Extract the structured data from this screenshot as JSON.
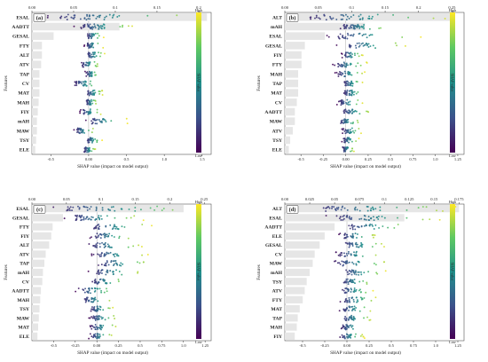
{
  "colorbar": {
    "label": "SHAP value",
    "high": "High",
    "low": "Low",
    "colors": [
      "#440154",
      "#3b528b",
      "#21918c",
      "#5ec962",
      "#fde725"
    ]
  },
  "bar_color": "#e6e6e6",
  "chart_data": [
    {
      "panel": "(a)",
      "type": "scatter",
      "xlabel": "SHAP value (impact on model output)",
      "ylabel": "Features",
      "bottom_ticks": [
        -0.5,
        0.0,
        0.5,
        1.0,
        1.5
      ],
      "bottom_range": [
        -0.75,
        1.62
      ],
      "top_ticks": [
        0.0,
        0.05,
        0.1,
        0.15,
        0.2
      ],
      "top_range": [
        0.0,
        0.215
      ],
      "features": [
        "ESAL",
        "AADTT",
        "GESAL",
        "FTY",
        "ALT",
        "ATV",
        "TAP",
        "CV",
        "MAT",
        "MAH",
        "FIY",
        "mAH",
        "MAW",
        "TSY",
        "ELE"
      ],
      "importance": [
        0.21,
        0.105,
        0.026,
        0.012,
        0.012,
        0.011,
        0.009,
        0.009,
        0.009,
        0.008,
        0.007,
        0.006,
        0.006,
        0.005,
        0.004
      ],
      "spread": [
        [
          -0.72,
          1.55
        ],
        [
          -0.2,
          0.62
        ],
        [
          -0.05,
          0.2
        ],
        [
          -0.06,
          0.2
        ],
        [
          -0.05,
          0.22
        ],
        [
          -0.12,
          0.16
        ],
        [
          -0.05,
          0.14
        ],
        [
          -0.22,
          0.16
        ],
        [
          -0.05,
          0.2
        ],
        [
          -0.05,
          0.12
        ],
        [
          -0.12,
          0.18
        ],
        [
          -0.05,
          0.52
        ],
        [
          -0.2,
          0.1
        ],
        [
          -0.05,
          0.18
        ],
        [
          -0.08,
          0.1
        ]
      ]
    },
    {
      "panel": "(b)",
      "type": "scatter",
      "xlabel": "SHAP value (impact on model output)",
      "ylabel": "Features",
      "bottom_ticks": [
        -0.5,
        -0.25,
        0.0,
        0.25,
        0.5,
        0.75,
        1.0,
        1.25
      ],
      "bottom_range": [
        -0.68,
        1.32
      ],
      "top_ticks": [
        0.0,
        0.05,
        0.1,
        0.15,
        0.2,
        0.25
      ],
      "top_range": [
        0.0,
        0.268
      ],
      "features": [
        "ALT",
        "mAH",
        "ESAL",
        "GESAL",
        "FIY",
        "FTY",
        "MAH",
        "TAP",
        "MAT",
        "CV",
        "AADTT",
        "MAW",
        "ATV",
        "TSY",
        "ELE"
      ],
      "importance": [
        0.25,
        0.12,
        0.06,
        0.03,
        0.025,
        0.025,
        0.02,
        0.02,
        0.02,
        0.018,
        0.015,
        0.015,
        0.012,
        0.008,
        0.006
      ],
      "spread": [
        [
          -0.62,
          1.22
        ],
        [
          -0.12,
          0.52
        ],
        [
          -0.25,
          0.85
        ],
        [
          -0.12,
          0.7
        ],
        [
          -0.05,
          0.2
        ],
        [
          -0.15,
          0.25
        ],
        [
          -0.12,
          0.22
        ],
        [
          -0.05,
          0.2
        ],
        [
          -0.05,
          0.22
        ],
        [
          -0.1,
          0.2
        ],
        [
          -0.08,
          0.3
        ],
        [
          -0.1,
          0.18
        ],
        [
          -0.05,
          0.18
        ],
        [
          -0.05,
          0.15
        ],
        [
          -0.05,
          0.1
        ]
      ]
    },
    {
      "panel": "(c)",
      "type": "scatter",
      "xlabel": "SHAP value (impact on model output)",
      "ylabel": "Features",
      "bottom_ticks": [
        -0.5,
        -0.25,
        0.0,
        0.25,
        0.5,
        0.75,
        1.0,
        1.25
      ],
      "bottom_range": [
        -0.75,
        1.32
      ],
      "top_ticks": [
        0.0,
        0.05,
        0.1,
        0.15,
        0.2,
        0.25
      ],
      "top_range": [
        0.0,
        0.26
      ],
      "features": [
        "ESAL",
        "GESAL",
        "FTY",
        "FIY",
        "ALT",
        "ATV",
        "TAP",
        "mAH",
        "CV",
        "AADTT",
        "MAH",
        "TSY",
        "MAW",
        "MAT",
        "ELE"
      ],
      "importance": [
        0.22,
        0.045,
        0.03,
        0.028,
        0.025,
        0.02,
        0.018,
        0.016,
        0.015,
        0.013,
        0.012,
        0.011,
        0.01,
        0.009,
        0.008
      ],
      "spread": [
        [
          -0.65,
          1.25
        ],
        [
          -0.4,
          0.55
        ],
        [
          -0.15,
          0.65
        ],
        [
          -0.1,
          0.45
        ],
        [
          -0.15,
          0.55
        ],
        [
          -0.1,
          0.6
        ],
        [
          -0.05,
          0.65
        ],
        [
          -0.1,
          0.55
        ],
        [
          -0.1,
          0.35
        ],
        [
          -0.25,
          0.25
        ],
        [
          -0.2,
          0.2
        ],
        [
          -0.1,
          0.2
        ],
        [
          -0.1,
          0.25
        ],
        [
          -0.1,
          0.25
        ],
        [
          -0.1,
          0.2
        ]
      ]
    },
    {
      "panel": "(d)",
      "type": "scatter",
      "xlabel": "SHAP value (impact on model output)",
      "ylabel": "Features",
      "bottom_ticks": [
        -0.5,
        -0.25,
        0.0,
        0.25,
        0.5,
        0.75,
        1.0,
        1.25
      ],
      "bottom_range": [
        -0.7,
        1.32
      ],
      "top_ticks": [
        0.0,
        0.025,
        0.05,
        0.075,
        0.1,
        0.125,
        0.15,
        0.175
      ],
      "top_range": [
        0.0,
        0.18
      ],
      "features": [
        "ALT",
        "ESAL",
        "AADTT",
        "ELE",
        "GESAL",
        "CV",
        "MAW",
        "mAH",
        "TSY",
        "ATV",
        "FTY",
        "MAT",
        "TAP",
        "MAH",
        "FIY"
      ],
      "importance": [
        0.175,
        0.12,
        0.05,
        0.04,
        0.035,
        0.03,
        0.028,
        0.025,
        0.022,
        0.02,
        0.018,
        0.015,
        0.013,
        0.012,
        0.01
      ],
      "spread": [
        [
          -0.55,
          1.25
        ],
        [
          -0.3,
          1.1
        ],
        [
          -0.1,
          0.75
        ],
        [
          -0.1,
          0.35
        ],
        [
          -0.1,
          0.45
        ],
        [
          -0.15,
          0.4
        ],
        [
          -0.2,
          0.5
        ],
        [
          -0.1,
          0.45
        ],
        [
          -0.1,
          0.3
        ],
        [
          -0.1,
          0.3
        ],
        [
          -0.1,
          0.35
        ],
        [
          -0.1,
          0.3
        ],
        [
          -0.1,
          0.3
        ],
        [
          -0.1,
          0.25
        ],
        [
          -0.1,
          0.2
        ]
      ]
    }
  ]
}
